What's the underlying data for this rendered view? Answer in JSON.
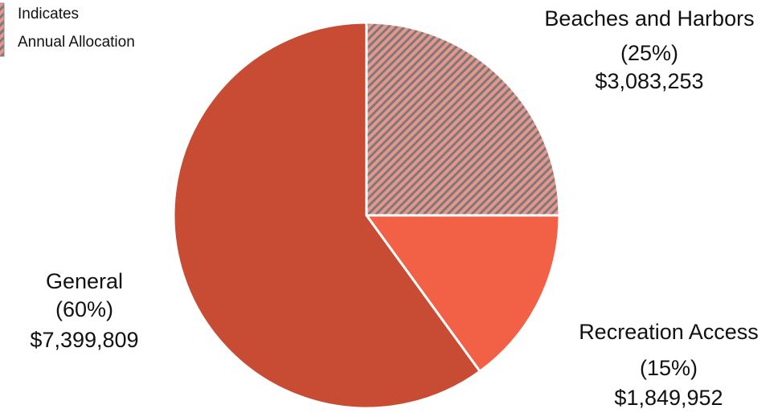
{
  "chart_data": {
    "type": "pie",
    "categories": [
      "Beaches and Harbors",
      "Recreation Access",
      "General"
    ],
    "values": [
      25,
      15,
      60
    ],
    "value_labels": [
      "(25%)",
      "(15%)",
      "(60%)"
    ],
    "amounts": [
      "$3,083,253",
      "$1,849,952",
      "$7,399,809"
    ],
    "colors": [
      "#e8968c",
      "#f26145",
      "#c84b33"
    ],
    "hatched": [
      true,
      false,
      false
    ],
    "legend": {
      "lines": [
        "Indicates",
        "Annual Allocation"
      ],
      "hatched": true
    }
  }
}
